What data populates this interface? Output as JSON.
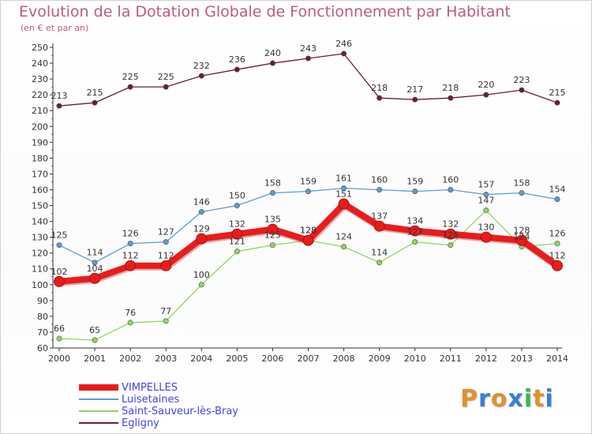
{
  "title": "Evolution de la Dotation Globale de Fonctionnement par Habitant",
  "subtitle": "(en € et par an)",
  "logo": {
    "text": "Proxiti",
    "letter_colors": [
      "#e0912b",
      "#3b7fd1",
      "#e0912b",
      "#3b7fd1",
      "#3bb84a",
      "#e0912b",
      "#3b7fd1"
    ]
  },
  "chart_data": {
    "type": "line",
    "title": "Evolution de la Dotation Globale de Fonctionnement par Habitant",
    "subtitle": "(en € et par an)",
    "x": [
      "2000",
      "2001",
      "2002",
      "2003",
      "2004",
      "2005",
      "2006",
      "2007",
      "2008",
      "2009",
      "2010",
      "2011",
      "2012",
      "2013",
      "2014"
    ],
    "ylim": [
      60,
      250
    ],
    "yticks": [
      60,
      70,
      80,
      90,
      100,
      110,
      120,
      130,
      140,
      150,
      160,
      170,
      180,
      190,
      200,
      210,
      220,
      230,
      240,
      250
    ],
    "grid": false,
    "legend_position": "bottom-left",
    "series": [
      {
        "name": "VIMPELLES",
        "color": "#e81c1c",
        "values": [
          102,
          104,
          112,
          112,
          129,
          132,
          135,
          128,
          151,
          137,
          134,
          132,
          130,
          128,
          112
        ],
        "point_labels": [
          "102",
          "104",
          "112",
          "112",
          "129",
          "132",
          "135",
          "128",
          "151",
          "137",
          "134",
          "132",
          "130",
          "128",
          "112"
        ]
      },
      {
        "name": "Luisetaines",
        "color": "#5b9bd5",
        "values": [
          125,
          114,
          126,
          127,
          146,
          150,
          158,
          159,
          161,
          160,
          159,
          160,
          157,
          158,
          154
        ],
        "point_labels": [
          "125",
          "114",
          "126",
          "127",
          "146",
          "150",
          "158",
          "159",
          "161",
          "160",
          "159",
          "160",
          "157",
          "158",
          "154"
        ]
      },
      {
        "name": "Saint-Sauveur-lès-Bray",
        "color": "#8fd460",
        "values": [
          66,
          65,
          76,
          77,
          100,
          121,
          125,
          128,
          124,
          114,
          127,
          125,
          147,
          124,
          126
        ],
        "point_labels": [
          "66",
          "65",
          "76",
          "77",
          "100",
          "121",
          "125",
          "128",
          "124",
          "114",
          "127",
          "125",
          "147",
          "124",
          "126"
        ]
      },
      {
        "name": "Egligny",
        "color": "#6b1f2a",
        "values": [
          213,
          215,
          225,
          225,
          232,
          236,
          240,
          243,
          246,
          218,
          217,
          218,
          220,
          223,
          215
        ],
        "point_labels": [
          "213",
          "215",
          "225",
          "225",
          "232",
          "236",
          "240",
          "243",
          "246",
          "218",
          "217",
          "218",
          "220",
          "223",
          "215"
        ]
      }
    ]
  }
}
